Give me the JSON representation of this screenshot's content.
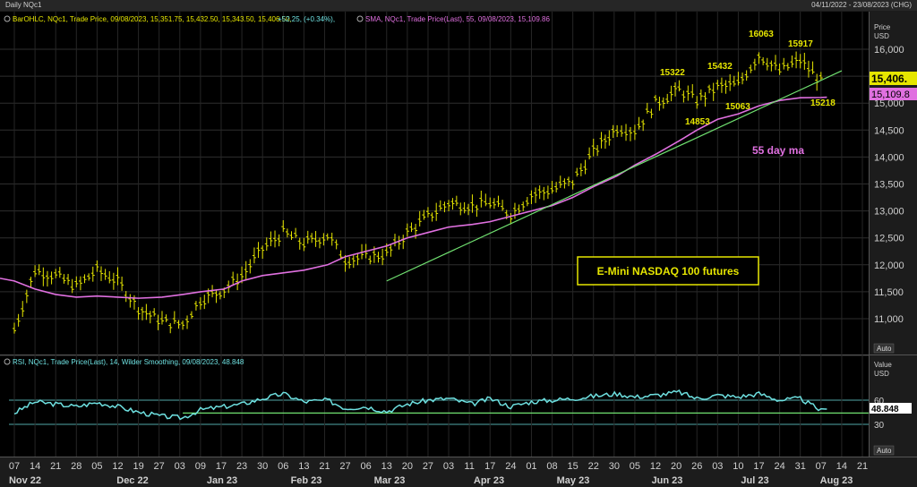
{
  "window": {
    "title": "Daily NQc1",
    "date_range": "04/11/2022 - 23/08/2023 (CHG)"
  },
  "price_panel": {
    "legend_bar": "BarOHLC, NQc1, Trade Price, 09/08/2023, 15,351.75, 15,432.50, 15,343.50, 15,406.50, ",
    "legend_change": "+52.25, (+0.34%),",
    "legend_sma": "SMA, NQc1, Trade Price(Last),  55, 09/08/2023, 15,109.86",
    "axis_title_1": "Price",
    "axis_title_2": "USD",
    "auto_label": "Auto",
    "last_price_tag": "15,406.",
    "sma_tag": "15,109.8",
    "y_ticks": [
      "16,000",
      "15,500",
      "15,000",
      "14,500",
      "14,000",
      "13,500",
      "13,000",
      "12,500",
      "12,000",
      "11,500",
      "11,000"
    ],
    "annotations": [
      "16063",
      "15917",
      "15432",
      "15322",
      "14853",
      "15063",
      "15218",
      "55 day ma"
    ],
    "title_box": "E-Mini NASDAQ 100 futures"
  },
  "rsi_panel": {
    "legend": "RSI, NQc1, Trade Price(Last),  14, Wilder Smoothing, 09/08/2023, 48.848",
    "axis_title_1": "Value",
    "axis_title_2": "USD",
    "y_ticks": [
      "60",
      "30"
    ],
    "last_tag": "48.848",
    "auto_label": "Auto"
  },
  "x_axis": {
    "day_ticks": [
      "07",
      "14",
      "21",
      "28",
      "05",
      "12",
      "19",
      "27",
      "03",
      "09",
      "17",
      "23",
      "30",
      "06",
      "13",
      "21",
      "27",
      "06",
      "13",
      "20",
      "27",
      "03",
      "11",
      "17",
      "24",
      "01",
      "08",
      "15",
      "22",
      "30",
      "05",
      "12",
      "20",
      "26",
      "03",
      "10",
      "17",
      "24",
      "31",
      "07",
      "14",
      "21"
    ],
    "month_labels": [
      "Nov 22",
      "Dec 22",
      "Jan 23",
      "Feb 23",
      "Mar 23",
      "Apr 23",
      "May 23",
      "Jun 23",
      "Jul 23",
      "Aug 23"
    ]
  },
  "colors": {
    "price_bars": "#e6e600",
    "sma_line": "#e070e0",
    "trend_line": "#70e070",
    "rsi_line": "#6ee0e0",
    "annotation": "#e6e600",
    "ma_label": "#e070e0"
  },
  "chart_data": [
    {
      "type": "line",
      "title": "E-Mini NASDAQ 100 futures",
      "x": [
        "07 Nov 22",
        "14 Nov 22",
        "21 Nov 22",
        "28 Nov 22",
        "05 Dec 22",
        "12 Dec 22",
        "19 Dec 22",
        "27 Dec 22",
        "03 Jan 23",
        "09 Jan 23",
        "17 Jan 23",
        "23 Jan 23",
        "30 Jan 23",
        "06 Feb 23",
        "13 Feb 23",
        "21 Feb 23",
        "27 Feb 23",
        "06 Mar 23",
        "13 Mar 23",
        "20 Mar 23",
        "27 Mar 23",
        "03 Apr 23",
        "11 Apr 23",
        "17 Apr 23",
        "24 Apr 23",
        "01 May 23",
        "08 May 23",
        "15 May 23",
        "22 May 23",
        "30 May 23",
        "05 Jun 23",
        "12 Jun 23",
        "20 Jun 23",
        "26 Jun 23",
        "03 Jul 23",
        "10 Jul 23",
        "17 Jul 23",
        "24 Jul 23",
        "31 Jul 23",
        "07 Aug 23",
        "09 Aug 23"
      ],
      "series": [
        {
          "values": [
            10800,
            11900,
            11800,
            11600,
            11900,
            11700,
            11200,
            10950,
            10900,
            11350,
            11550,
            11800,
            12300,
            12600,
            12400,
            12550,
            12100,
            12150,
            12200,
            12600,
            12900,
            13150,
            13100,
            13150,
            12950,
            13300,
            13400,
            13550,
            14100,
            14550,
            14500,
            15000,
            15250,
            15050,
            15300,
            15350,
            15900,
            15600,
            15800,
            15400,
            15406.5
          ]
        },
        {
          "values": [
            11700,
            11550,
            11450,
            11400,
            11420,
            11400,
            11380,
            11400,
            11450,
            11500,
            11550,
            11700,
            11800,
            11850,
            11900,
            12000,
            12150,
            12250,
            12350,
            12500,
            12600,
            12700,
            12750,
            12800,
            12900,
            13000,
            13100,
            13250,
            13450,
            13650,
            13850,
            14050,
            14300,
            14500,
            14700,
            14800,
            14950,
            15050,
            15100,
            15105,
            15109.86
          ]
        }
      ],
      "annotations": [
        {
          "label": "16063",
          "x": "19 Jul 23",
          "y": 16063
        },
        {
          "label": "15917",
          "x": "27 Jul 23",
          "y": 15917
        },
        {
          "label": "15432",
          "x": "05 Jul 23",
          "y": 15432
        },
        {
          "label": "15322",
          "x": "16 Jun 23",
          "y": 15322
        },
        {
          "label": "14853",
          "x": "22 Jun 23",
          "y": 14853
        },
        {
          "label": "15063",
          "x": "10 Jul 23",
          "y": 15063
        },
        {
          "label": "15218",
          "x": "09 Aug 23",
          "y": 15218
        }
      ],
      "trendline": [
        {
          "x": "13 Mar 23",
          "y": 11700
        },
        {
          "x": "14 Aug 23",
          "y": 15600
        }
      ],
      "ylim": [
        10650,
        16600
      ],
      "ylabel": "Price USD"
    },
    {
      "type": "line",
      "title": "RSI",
      "x": [
        "07 Nov 22",
        "14 Nov 22",
        "21 Nov 22",
        "28 Nov 22",
        "05 Dec 22",
        "12 Dec 22",
        "19 Dec 22",
        "27 Dec 22",
        "03 Jan 23",
        "09 Jan 23",
        "17 Jan 23",
        "23 Jan 23",
        "30 Jan 23",
        "06 Feb 23",
        "13 Feb 23",
        "21 Feb 23",
        "27 Feb 23",
        "06 Mar 23",
        "13 Mar 23",
        "20 Mar 23",
        "27 Mar 23",
        "03 Apr 23",
        "11 Apr 23",
        "17 Apr 23",
        "24 Apr 23",
        "01 May 23",
        "08 May 23",
        "15 May 23",
        "22 May 23",
        "30 May 23",
        "05 Jun 23",
        "12 Jun 23",
        "20 Jun 23",
        "26 Jun 23",
        "03 Jul 23",
        "10 Jul 23",
        "17 Jul 23",
        "24 Jul 23",
        "31 Jul 23",
        "07 Aug 23",
        "09 Aug 23"
      ],
      "series": [
        {
          "values": [
            44,
            58,
            55,
            52,
            57,
            52,
            45,
            40,
            38,
            48,
            52,
            55,
            62,
            68,
            58,
            60,
            50,
            52,
            46,
            55,
            60,
            62,
            55,
            62,
            52,
            58,
            60,
            62,
            65,
            68,
            64,
            66,
            70,
            62,
            66,
            64,
            68,
            60,
            62,
            47,
            48.848
          ]
        }
      ],
      "ylim": [
        15,
        85
      ],
      "ylabel": "Value USD"
    }
  ]
}
